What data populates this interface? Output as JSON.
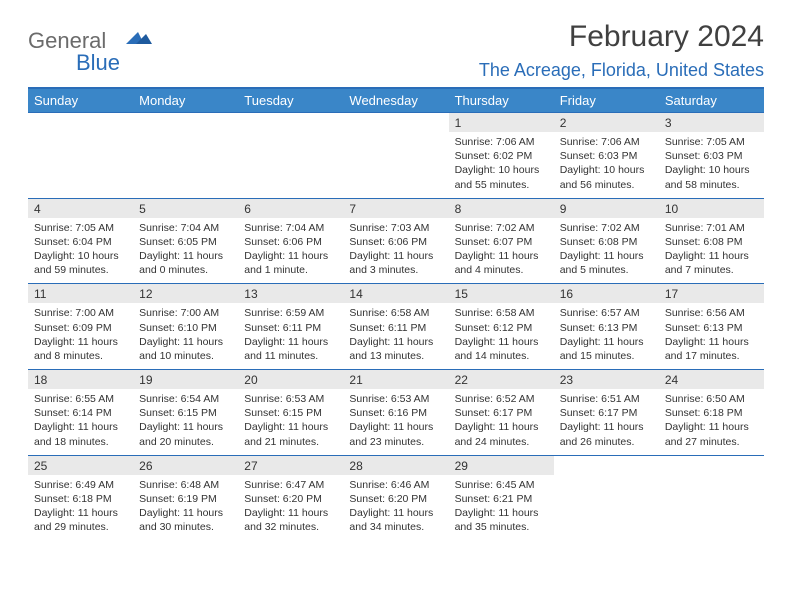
{
  "colors": {
    "header_bg": "#3a86c8",
    "accent": "#2a6db8",
    "daynum_bg": "#e9e9e9",
    "text": "#333333",
    "logo_gray": "#6b6b6b",
    "background": "#ffffff"
  },
  "typography": {
    "title_fontsize": 30,
    "location_fontsize": 18,
    "dayheader_fontsize": 13,
    "cell_fontsize": 10.5
  },
  "logo": {
    "line1": "General",
    "line2": "Blue"
  },
  "title": "February 2024",
  "location": "The Acreage, Florida, United States",
  "day_headers": [
    "Sunday",
    "Monday",
    "Tuesday",
    "Wednesday",
    "Thursday",
    "Friday",
    "Saturday"
  ],
  "weeks": [
    [
      null,
      null,
      null,
      null,
      {
        "n": "1",
        "sr": "7:06 AM",
        "ss": "6:02 PM",
        "dl": "10 hours and 55 minutes."
      },
      {
        "n": "2",
        "sr": "7:06 AM",
        "ss": "6:03 PM",
        "dl": "10 hours and 56 minutes."
      },
      {
        "n": "3",
        "sr": "7:05 AM",
        "ss": "6:03 PM",
        "dl": "10 hours and 58 minutes."
      }
    ],
    [
      {
        "n": "4",
        "sr": "7:05 AM",
        "ss": "6:04 PM",
        "dl": "10 hours and 59 minutes."
      },
      {
        "n": "5",
        "sr": "7:04 AM",
        "ss": "6:05 PM",
        "dl": "11 hours and 0 minutes."
      },
      {
        "n": "6",
        "sr": "7:04 AM",
        "ss": "6:06 PM",
        "dl": "11 hours and 1 minute."
      },
      {
        "n": "7",
        "sr": "7:03 AM",
        "ss": "6:06 PM",
        "dl": "11 hours and 3 minutes."
      },
      {
        "n": "8",
        "sr": "7:02 AM",
        "ss": "6:07 PM",
        "dl": "11 hours and 4 minutes."
      },
      {
        "n": "9",
        "sr": "7:02 AM",
        "ss": "6:08 PM",
        "dl": "11 hours and 5 minutes."
      },
      {
        "n": "10",
        "sr": "7:01 AM",
        "ss": "6:08 PM",
        "dl": "11 hours and 7 minutes."
      }
    ],
    [
      {
        "n": "11",
        "sr": "7:00 AM",
        "ss": "6:09 PM",
        "dl": "11 hours and 8 minutes."
      },
      {
        "n": "12",
        "sr": "7:00 AM",
        "ss": "6:10 PM",
        "dl": "11 hours and 10 minutes."
      },
      {
        "n": "13",
        "sr": "6:59 AM",
        "ss": "6:11 PM",
        "dl": "11 hours and 11 minutes."
      },
      {
        "n": "14",
        "sr": "6:58 AM",
        "ss": "6:11 PM",
        "dl": "11 hours and 13 minutes."
      },
      {
        "n": "15",
        "sr": "6:58 AM",
        "ss": "6:12 PM",
        "dl": "11 hours and 14 minutes."
      },
      {
        "n": "16",
        "sr": "6:57 AM",
        "ss": "6:13 PM",
        "dl": "11 hours and 15 minutes."
      },
      {
        "n": "17",
        "sr": "6:56 AM",
        "ss": "6:13 PM",
        "dl": "11 hours and 17 minutes."
      }
    ],
    [
      {
        "n": "18",
        "sr": "6:55 AM",
        "ss": "6:14 PM",
        "dl": "11 hours and 18 minutes."
      },
      {
        "n": "19",
        "sr": "6:54 AM",
        "ss": "6:15 PM",
        "dl": "11 hours and 20 minutes."
      },
      {
        "n": "20",
        "sr": "6:53 AM",
        "ss": "6:15 PM",
        "dl": "11 hours and 21 minutes."
      },
      {
        "n": "21",
        "sr": "6:53 AM",
        "ss": "6:16 PM",
        "dl": "11 hours and 23 minutes."
      },
      {
        "n": "22",
        "sr": "6:52 AM",
        "ss": "6:17 PM",
        "dl": "11 hours and 24 minutes."
      },
      {
        "n": "23",
        "sr": "6:51 AM",
        "ss": "6:17 PM",
        "dl": "11 hours and 26 minutes."
      },
      {
        "n": "24",
        "sr": "6:50 AM",
        "ss": "6:18 PM",
        "dl": "11 hours and 27 minutes."
      }
    ],
    [
      {
        "n": "25",
        "sr": "6:49 AM",
        "ss": "6:18 PM",
        "dl": "11 hours and 29 minutes."
      },
      {
        "n": "26",
        "sr": "6:48 AM",
        "ss": "6:19 PM",
        "dl": "11 hours and 30 minutes."
      },
      {
        "n": "27",
        "sr": "6:47 AM",
        "ss": "6:20 PM",
        "dl": "11 hours and 32 minutes."
      },
      {
        "n": "28",
        "sr": "6:46 AM",
        "ss": "6:20 PM",
        "dl": "11 hours and 34 minutes."
      },
      {
        "n": "29",
        "sr": "6:45 AM",
        "ss": "6:21 PM",
        "dl": "11 hours and 35 minutes."
      },
      null,
      null
    ]
  ],
  "labels": {
    "sunrise": "Sunrise: ",
    "sunset": "Sunset: ",
    "daylight": "Daylight: "
  }
}
